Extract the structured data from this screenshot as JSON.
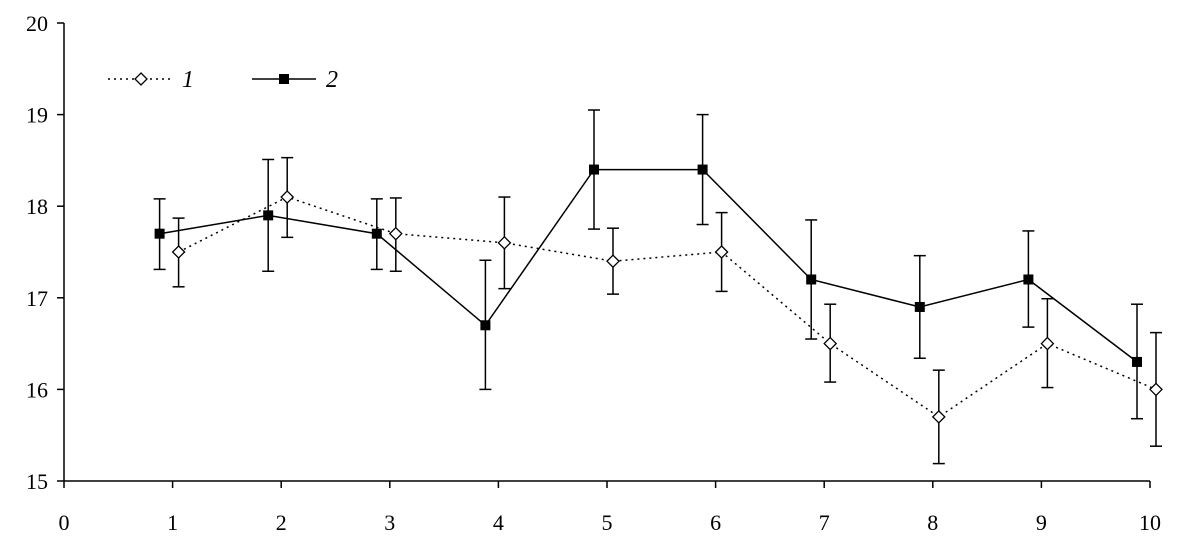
{
  "chart_data": {
    "type": "line",
    "xlim": [
      0,
      10
    ],
    "ylim": [
      15,
      20
    ],
    "x_ticks": [
      "0",
      "1",
      "2",
      "3",
      "4",
      "5",
      "6",
      "7",
      "8",
      "9",
      "10"
    ],
    "y_ticks": [
      "15",
      "16",
      "17",
      "18",
      "19",
      "20"
    ],
    "legend": {
      "position": "top-left",
      "entries": [
        "1",
        "2"
      ]
    },
    "grid": false,
    "series": [
      {
        "name": "1",
        "line_style": "dotted",
        "marker": "diamond-open",
        "x": [
          1,
          2,
          3,
          4,
          5,
          6,
          7,
          8,
          9,
          10
        ],
        "y": [
          17.5,
          18.1,
          17.7,
          17.6,
          17.4,
          17.5,
          16.5,
          15.7,
          16.5,
          16.0
        ],
        "err_low": [
          17.12,
          17.66,
          17.29,
          17.1,
          17.04,
          17.07,
          16.08,
          15.19,
          16.02,
          15.38
        ],
        "err_high": [
          17.87,
          18.53,
          18.09,
          18.1,
          17.76,
          17.93,
          16.93,
          16.21,
          16.99,
          16.62
        ]
      },
      {
        "name": "2",
        "line_style": "solid",
        "marker": "square-filled",
        "x": [
          1,
          2,
          3,
          4,
          5,
          6,
          7,
          8,
          9,
          10
        ],
        "y": [
          17.7,
          17.9,
          17.7,
          16.7,
          18.4,
          18.4,
          17.2,
          16.9,
          17.2,
          16.3
        ],
        "err_low": [
          17.31,
          17.29,
          17.31,
          16.0,
          17.75,
          17.8,
          16.55,
          16.34,
          16.68,
          15.68
        ],
        "err_high": [
          18.08,
          18.51,
          18.08,
          17.41,
          19.05,
          19.0,
          17.85,
          17.46,
          17.73,
          16.93
        ]
      }
    ]
  }
}
